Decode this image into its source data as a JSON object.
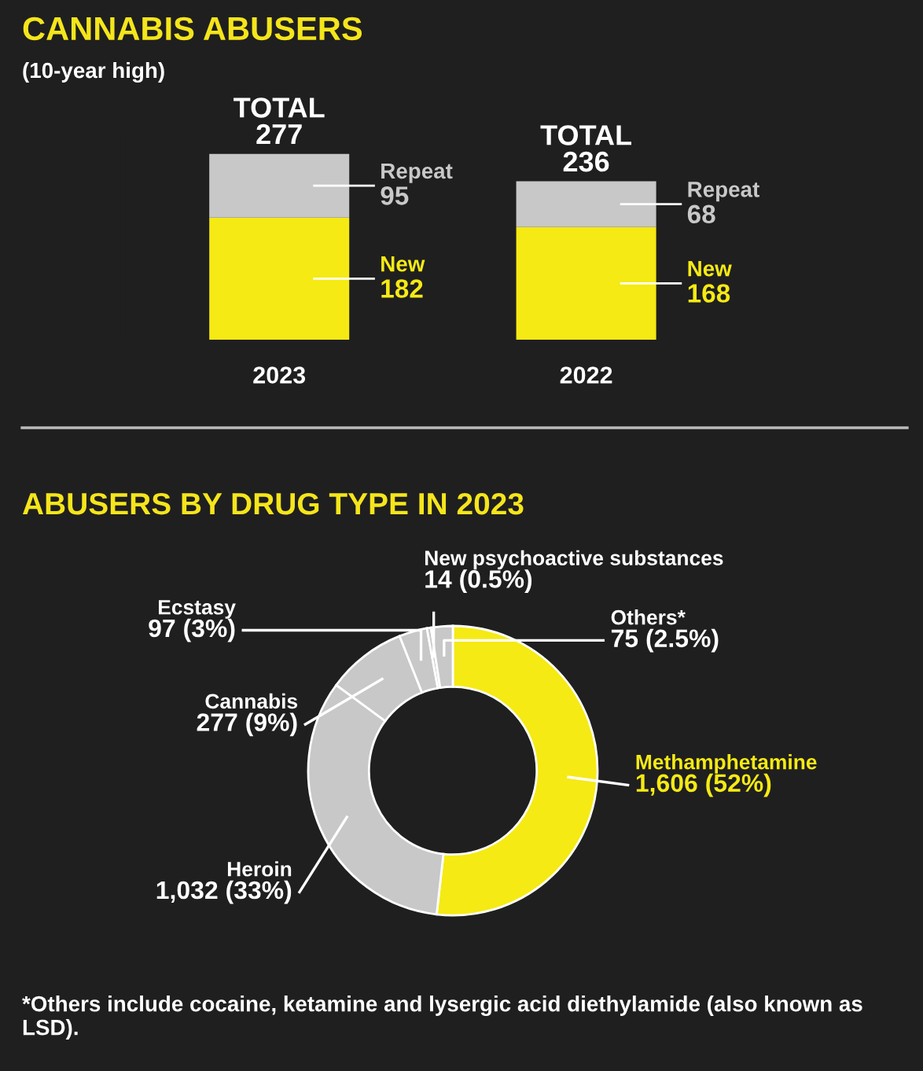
{
  "chart_data": [
    {
      "type": "bar",
      "title": "CANNABIS ABUSERS",
      "subtitle": "(10-year high)",
      "categories": [
        "2023",
        "2022"
      ],
      "stacked": true,
      "data_labels": true,
      "totals": [
        "TOTAL\n277",
        "TOTAL\n236"
      ],
      "series": [
        {
          "name": "New",
          "color": "#f5ea14",
          "values": [
            182,
            168
          ]
        },
        {
          "name": "Repeat",
          "color": "#c8c8c8",
          "values": [
            95,
            68
          ]
        }
      ]
    },
    {
      "type": "donut",
      "title": "ABUSERS BY DRUG TYPE IN 2023",
      "categories": [
        "Methamphetamine",
        "Heroin",
        "Cannabis",
        "Ecstasy",
        "New psychoactive substances",
        "Others*"
      ],
      "values": [
        1606,
        1032,
        277,
        97,
        14,
        75
      ],
      "value_labels": [
        "1,606 (52%)",
        "1,032 (33%)",
        "277 (9%)",
        "97 (3%)",
        "14 (0.5%)",
        "75 (2.5%)"
      ],
      "colors": [
        "#f5ea14",
        "#c8c8c8",
        "#c8c8c8",
        "#c8c8c8",
        "#c8c8c8",
        "#c8c8c8"
      ],
      "annotations": [
        "*Others include cocaine, ketamine and lysergic acid diethylamide (also known as LSD)."
      ]
    }
  ]
}
